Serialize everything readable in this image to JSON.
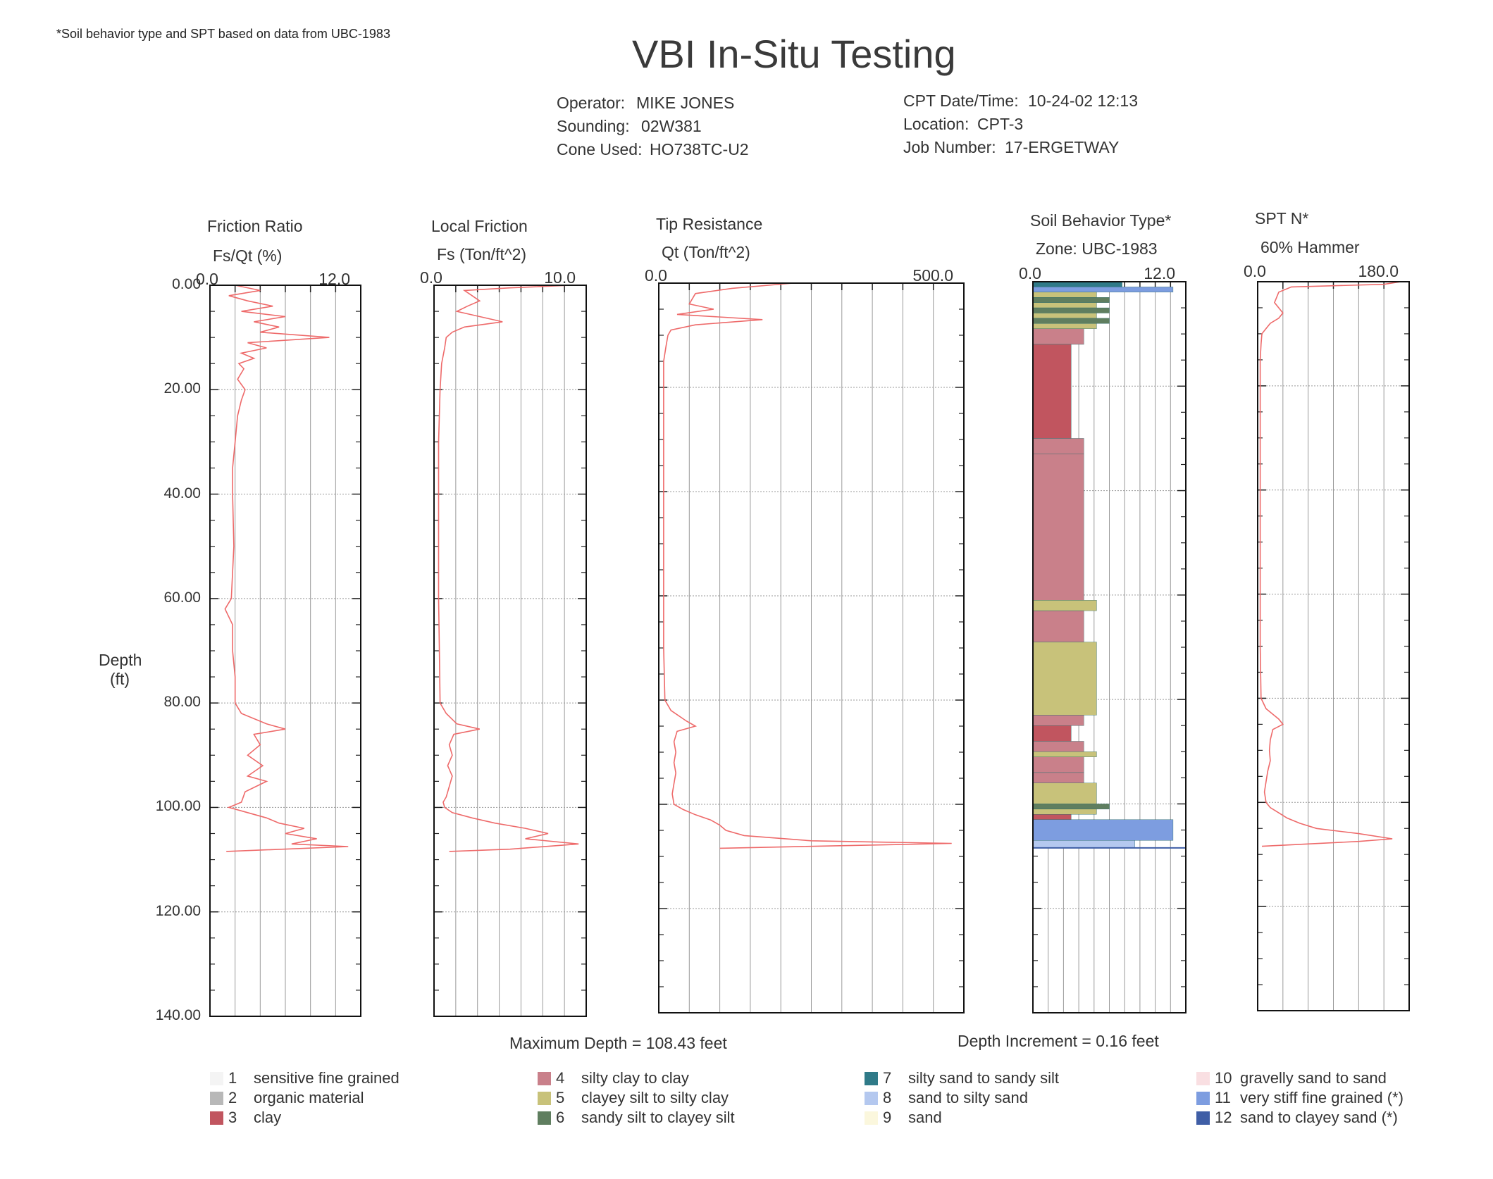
{
  "page": {
    "footnote": "*Soil behavior type and SPT based on data from UBC-1983",
    "title": "VBI In-Situ Testing"
  },
  "header": {
    "operator_label": "Operator:",
    "operator": "MIKE JONES",
    "sounding_label": "Sounding:",
    "sounding": "02W381",
    "cone_label": "Cone Used:",
    "cone": "HO738TC-U2",
    "datetime_label": "CPT Date/Time:",
    "datetime": "10-24-02 12:13",
    "location_label": "Location:",
    "location": "CPT-3",
    "job_label": "Job Number:",
    "job": "17-ERGETWAY"
  },
  "footer": {
    "max_depth": "Maximum Depth = 108.43 feet",
    "depth_increment": "Depth Increment = 0.16 feet"
  },
  "legend": [
    {
      "num": "1",
      "label": "sensitive fine grained",
      "color": "#f4f4f4"
    },
    {
      "num": "2",
      "label": "organic material",
      "color": "#b8b8b8"
    },
    {
      "num": "3",
      "label": "clay",
      "color": "#c1555f"
    },
    {
      "num": "4",
      "label": "silty clay to clay",
      "color": "#c9808a"
    },
    {
      "num": "5",
      "label": "clayey silt to silty clay",
      "color": "#c8c27a"
    },
    {
      "num": "6",
      "label": "sandy silt to clayey silt",
      "color": "#5f7e5f"
    },
    {
      "num": "7",
      "label": "silty sand to sandy silt",
      "color": "#2f7a88"
    },
    {
      "num": "8",
      "label": "sand to silty sand",
      "color": "#b4c8ef"
    },
    {
      "num": "9",
      "label": "sand",
      "color": "#fbf7dd"
    },
    {
      "num": "10",
      "label": "gravelly sand to sand",
      "color": "#f9dfe2"
    },
    {
      "num": "11",
      "label": "very stiff fine grained (*)",
      "color": "#7d9de0"
    },
    {
      "num": "12",
      "label": "sand to clayey sand (*)",
      "color": "#3f5ea6"
    }
  ],
  "chart_data": {
    "type": "line",
    "depth_axis": {
      "label_line1": "Depth",
      "label_line2": "(ft)",
      "range": [
        0,
        140
      ],
      "ticks": [
        "0.00",
        "20.00",
        "40.00",
        "60.00",
        "80.00",
        "100.00",
        "120.00",
        "140.00"
      ],
      "inverted": true
    },
    "line_color": "#ee6a6a",
    "panels": [
      {
        "title": "Friction Ratio",
        "subtitle": "Fs/Qt (%)",
        "xmin": 0,
        "xmax": 12,
        "xmin_label": "0.0",
        "xmax_label": "12.0",
        "profile": [
          [
            0,
            2
          ],
          [
            1,
            4
          ],
          [
            2,
            1.5
          ],
          [
            3,
            3
          ],
          [
            4,
            5
          ],
          [
            5,
            2.5
          ],
          [
            6,
            6
          ],
          [
            7,
            3.5
          ],
          [
            8,
            5.5
          ],
          [
            9,
            4
          ],
          [
            10,
            9.5
          ],
          [
            11,
            3
          ],
          [
            12,
            4.5
          ],
          [
            13,
            2.5
          ],
          [
            14,
            3.5
          ],
          [
            15,
            2.3
          ],
          [
            16,
            2.7
          ],
          [
            18,
            2.2
          ],
          [
            20,
            2.8
          ],
          [
            22,
            2.5
          ],
          [
            25,
            2.2
          ],
          [
            30,
            2
          ],
          [
            35,
            1.8
          ],
          [
            40,
            1.8
          ],
          [
            50,
            1.9
          ],
          [
            55,
            1.8
          ],
          [
            60,
            1.7
          ],
          [
            62,
            1.2
          ],
          [
            65,
            1.8
          ],
          [
            70,
            1.8
          ],
          [
            75,
            2
          ],
          [
            80,
            2
          ],
          [
            82,
            2.5
          ],
          [
            84,
            4.5
          ],
          [
            85,
            6
          ],
          [
            86,
            3.5
          ],
          [
            88,
            4
          ],
          [
            90,
            3
          ],
          [
            92,
            4.2
          ],
          [
            94,
            3
          ],
          [
            95,
            4.5
          ],
          [
            97,
            2.8
          ],
          [
            99,
            2.5
          ],
          [
            100,
            1.5
          ],
          [
            101,
            3
          ],
          [
            102,
            4.5
          ],
          [
            103,
            5.5
          ],
          [
            104,
            7.5
          ],
          [
            105,
            6
          ],
          [
            106,
            8.5
          ],
          [
            107,
            6.5
          ],
          [
            107.5,
            11
          ],
          [
            108.43,
            1.3
          ]
        ]
      },
      {
        "title": "Local Friction",
        "subtitle": "Fs (Ton/ft^2)",
        "xmin": 0,
        "xmax": 10,
        "xmin_label": "0.0",
        "xmax_label": "10.0",
        "profile": [
          [
            0,
            9
          ],
          [
            0.5,
            5
          ],
          [
            1,
            2
          ],
          [
            2,
            2.5
          ],
          [
            3,
            3
          ],
          [
            4,
            2.2
          ],
          [
            5,
            1.5
          ],
          [
            6,
            3
          ],
          [
            7,
            4.5
          ],
          [
            8,
            2
          ],
          [
            9,
            1.2
          ],
          [
            10,
            0.8
          ],
          [
            12,
            0.7
          ],
          [
            15,
            0.5
          ],
          [
            20,
            0.4
          ],
          [
            30,
            0.3
          ],
          [
            40,
            0.3
          ],
          [
            50,
            0.3
          ],
          [
            60,
            0.3
          ],
          [
            70,
            0.35
          ],
          [
            80,
            0.4
          ],
          [
            82,
            0.8
          ],
          [
            84,
            1.5
          ],
          [
            85,
            3
          ],
          [
            86,
            1.3
          ],
          [
            88,
            1
          ],
          [
            90,
            1.2
          ],
          [
            92,
            0.9
          ],
          [
            94,
            1.2
          ],
          [
            96,
            1
          ],
          [
            98,
            0.8
          ],
          [
            99,
            0.6
          ],
          [
            100,
            0.7
          ],
          [
            101,
            1.2
          ],
          [
            102,
            2.5
          ],
          [
            103,
            4
          ],
          [
            104,
            6
          ],
          [
            105,
            7.5
          ],
          [
            106,
            6
          ],
          [
            107,
            9.5
          ],
          [
            108,
            5
          ],
          [
            108.43,
            1
          ]
        ]
      },
      {
        "title": "Tip Resistance",
        "subtitle": "Qt (Ton/ft^2)",
        "xmin": 0,
        "xmax": 500,
        "xmin_label": "0.0",
        "xmax_label": "500.0",
        "profile": [
          [
            0,
            220
          ],
          [
            1,
            120
          ],
          [
            2,
            60
          ],
          [
            4,
            50
          ],
          [
            5,
            90
          ],
          [
            6,
            30
          ],
          [
            7,
            170
          ],
          [
            8,
            60
          ],
          [
            9,
            20
          ],
          [
            10,
            15
          ],
          [
            12,
            12
          ],
          [
            15,
            8
          ],
          [
            20,
            8
          ],
          [
            30,
            8
          ],
          [
            40,
            8
          ],
          [
            50,
            8
          ],
          [
            60,
            8
          ],
          [
            70,
            8
          ],
          [
            80,
            10
          ],
          [
            82,
            20
          ],
          [
            84,
            45
          ],
          [
            85,
            60
          ],
          [
            86,
            30
          ],
          [
            88,
            25
          ],
          [
            90,
            28
          ],
          [
            92,
            25
          ],
          [
            94,
            28
          ],
          [
            96,
            25
          ],
          [
            98,
            22
          ],
          [
            100,
            25
          ],
          [
            101,
            40
          ],
          [
            102,
            60
          ],
          [
            103,
            85
          ],
          [
            104,
            100
          ],
          [
            105,
            110
          ],
          [
            106,
            140
          ],
          [
            107,
            250
          ],
          [
            107.5,
            480
          ],
          [
            108.43,
            100
          ]
        ]
      },
      {
        "title": "Soil Behavior Type*",
        "subtitle": "Zone: UBC-1983",
        "xmin": 0,
        "xmax": 12,
        "xmin_label": "0.0",
        "xmax_label": "12.0",
        "bars": [
          {
            "top": 0,
            "bottom": 1,
            "zone": 7
          },
          {
            "top": 1,
            "bottom": 2,
            "zone": 11
          },
          {
            "top": 2,
            "bottom": 3,
            "zone": 5
          },
          {
            "top": 3,
            "bottom": 4,
            "zone": 6
          },
          {
            "top": 4,
            "bottom": 5,
            "zone": 5
          },
          {
            "top": 5,
            "bottom": 6,
            "zone": 6
          },
          {
            "top": 6,
            "bottom": 7,
            "zone": 5
          },
          {
            "top": 7,
            "bottom": 8,
            "zone": 6
          },
          {
            "top": 8,
            "bottom": 9,
            "zone": 5
          },
          {
            "top": 9,
            "bottom": 12,
            "zone": 4
          },
          {
            "top": 12,
            "bottom": 30,
            "zone": 3
          },
          {
            "top": 30,
            "bottom": 33,
            "zone": 4
          },
          {
            "top": 33,
            "bottom": 61,
            "zone": 4
          },
          {
            "top": 61,
            "bottom": 63,
            "zone": 5
          },
          {
            "top": 63,
            "bottom": 69,
            "zone": 4
          },
          {
            "top": 69,
            "bottom": 83,
            "zone": 5
          },
          {
            "top": 83,
            "bottom": 85,
            "zone": 4
          },
          {
            "top": 85,
            "bottom": 88,
            "zone": 3
          },
          {
            "top": 88,
            "bottom": 90,
            "zone": 4
          },
          {
            "top": 90,
            "bottom": 91,
            "zone": 5
          },
          {
            "top": 91,
            "bottom": 94,
            "zone": 4
          },
          {
            "top": 94,
            "bottom": 96,
            "zone": 4
          },
          {
            "top": 96,
            "bottom": 100,
            "zone": 5
          },
          {
            "top": 100,
            "bottom": 101,
            "zone": 6
          },
          {
            "top": 101,
            "bottom": 102,
            "zone": 5
          },
          {
            "top": 102,
            "bottom": 103,
            "zone": 3
          },
          {
            "top": 103,
            "bottom": 107,
            "zone": 11
          },
          {
            "top": 107,
            "bottom": 108.43,
            "zone": 8
          }
        ]
      },
      {
        "title": "SPT N*",
        "subtitle": "60% Hammer",
        "xmin": 0,
        "xmax": 180,
        "xmin_label": "0.0",
        "xmax_label": "180.0",
        "profile": [
          [
            0,
            170
          ],
          [
            0.5,
            150
          ],
          [
            1,
            40
          ],
          [
            2,
            25
          ],
          [
            4,
            20
          ],
          [
            6,
            30
          ],
          [
            7,
            25
          ],
          [
            8,
            15
          ],
          [
            9,
            10
          ],
          [
            10,
            5
          ],
          [
            12,
            4
          ],
          [
            15,
            3
          ],
          [
            20,
            3
          ],
          [
            30,
            3
          ],
          [
            40,
            3
          ],
          [
            50,
            3
          ],
          [
            60,
            3
          ],
          [
            70,
            3
          ],
          [
            80,
            4
          ],
          [
            82,
            10
          ],
          [
            84,
            25
          ],
          [
            85,
            30
          ],
          [
            86,
            18
          ],
          [
            88,
            15
          ],
          [
            90,
            14
          ],
          [
            92,
            15
          ],
          [
            94,
            12
          ],
          [
            96,
            10
          ],
          [
            98,
            8
          ],
          [
            100,
            10
          ],
          [
            101,
            15
          ],
          [
            102,
            25
          ],
          [
            103,
            35
          ],
          [
            104,
            50
          ],
          [
            105,
            70
          ],
          [
            106,
            120
          ],
          [
            107,
            160
          ],
          [
            107.5,
            120
          ],
          [
            108.43,
            5
          ]
        ]
      }
    ]
  }
}
